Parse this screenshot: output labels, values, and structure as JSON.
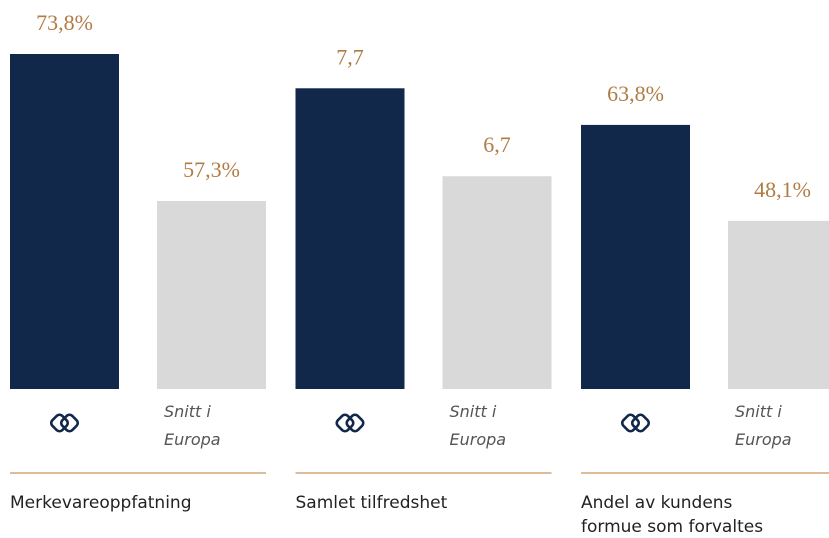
{
  "chart_data": [
    {
      "type": "bar",
      "title": "Merkevareoppfatning",
      "categories": [
        null,
        "Snitt i Europa"
      ],
      "values": [
        73.8,
        57.3
      ],
      "value_labels": [
        "73,8%",
        "57,3%"
      ],
      "colors": [
        "#12284a",
        "#d9d9d9"
      ],
      "ylim": [
        36.2,
        73.8
      ]
    },
    {
      "type": "bar",
      "title": "Samlet tilfredshet",
      "categories": [
        null,
        "Snitt i Europa"
      ],
      "values": [
        7.7,
        6.7
      ],
      "value_labels": [
        "7,7",
        "6,7"
      ],
      "colors": [
        "#12284a",
        "#d9d9d9"
      ],
      "ylim": [
        4.28,
        8.09
      ]
    },
    {
      "type": "bar",
      "title": "Andel av kundens formue som forvaltes",
      "categories": [
        null,
        "Snitt i Europa"
      ],
      "values": [
        63.8,
        48.1
      ],
      "value_labels": [
        "63,8%",
        "48,1%"
      ],
      "colors": [
        "#12284a",
        "#d9d9d9"
      ],
      "ylim": [
        20.6,
        75.4
      ]
    }
  ]
}
